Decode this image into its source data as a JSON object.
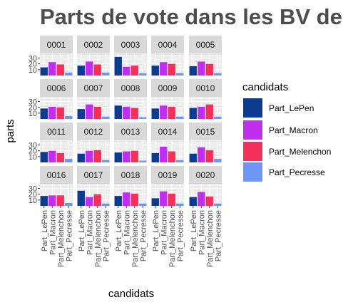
{
  "chart_data": {
    "type": "bar",
    "title": "Parts de vote dans les BV de",
    "xlabel": "candidats",
    "ylabel": "parts",
    "categories": [
      "Part_LePen",
      "Part_Macron",
      "Part_Melenchon",
      "Part_Pecresse"
    ],
    "y_ticks": [
      10,
      20,
      30
    ],
    "ylim": [
      0,
      38
    ],
    "grid": true,
    "legend": {
      "title": "candidats",
      "placement": "right",
      "entries": [
        "Part_LePen",
        "Part_Macron",
        "Part_Melenchon",
        "Part_Pecresse"
      ]
    },
    "colors": [
      "#0b3c91",
      "#c22ef0",
      "#f5305a",
      "#6d96f7"
    ],
    "panels": [
      {
        "name": "0001",
        "values": [
          14,
          23,
          19,
          5
        ]
      },
      {
        "name": "0002",
        "values": [
          17,
          24,
          19,
          5
        ]
      },
      {
        "name": "0003",
        "values": [
          32,
          15,
          17,
          4
        ]
      },
      {
        "name": "0004",
        "values": [
          17,
          23,
          20,
          4
        ]
      },
      {
        "name": "0005",
        "values": [
          16,
          24,
          20,
          4
        ]
      },
      {
        "name": "0006",
        "values": [
          18,
          21,
          20,
          5
        ]
      },
      {
        "name": "0007",
        "values": [
          17,
          25,
          21,
          4
        ]
      },
      {
        "name": "0008",
        "values": [
          23,
          21,
          19,
          3
        ]
      },
      {
        "name": "0009",
        "values": [
          18,
          23,
          21,
          4
        ]
      },
      {
        "name": "0010",
        "values": [
          19,
          21,
          25,
          4
        ]
      },
      {
        "name": "0011",
        "values": [
          18,
          20,
          16,
          6
        ]
      },
      {
        "name": "0012",
        "values": [
          15,
          20,
          21,
          4
        ]
      },
      {
        "name": "0013",
        "values": [
          17,
          19,
          20,
          3
        ]
      },
      {
        "name": "0014",
        "values": [
          16,
          27,
          19,
          4
        ]
      },
      {
        "name": "0015",
        "values": [
          15,
          26,
          21,
          6
        ]
      },
      {
        "name": "0016",
        "values": [
          17,
          18,
          18,
          5
        ]
      },
      {
        "name": "0017",
        "values": [
          26,
          15,
          20,
          4
        ]
      },
      {
        "name": "0018",
        "values": [
          17,
          23,
          21,
          4
        ]
      },
      {
        "name": "0019",
        "values": [
          13,
          25,
          21,
          4
        ]
      },
      {
        "name": "0020",
        "values": [
          15,
          24,
          16,
          4
        ]
      }
    ]
  }
}
